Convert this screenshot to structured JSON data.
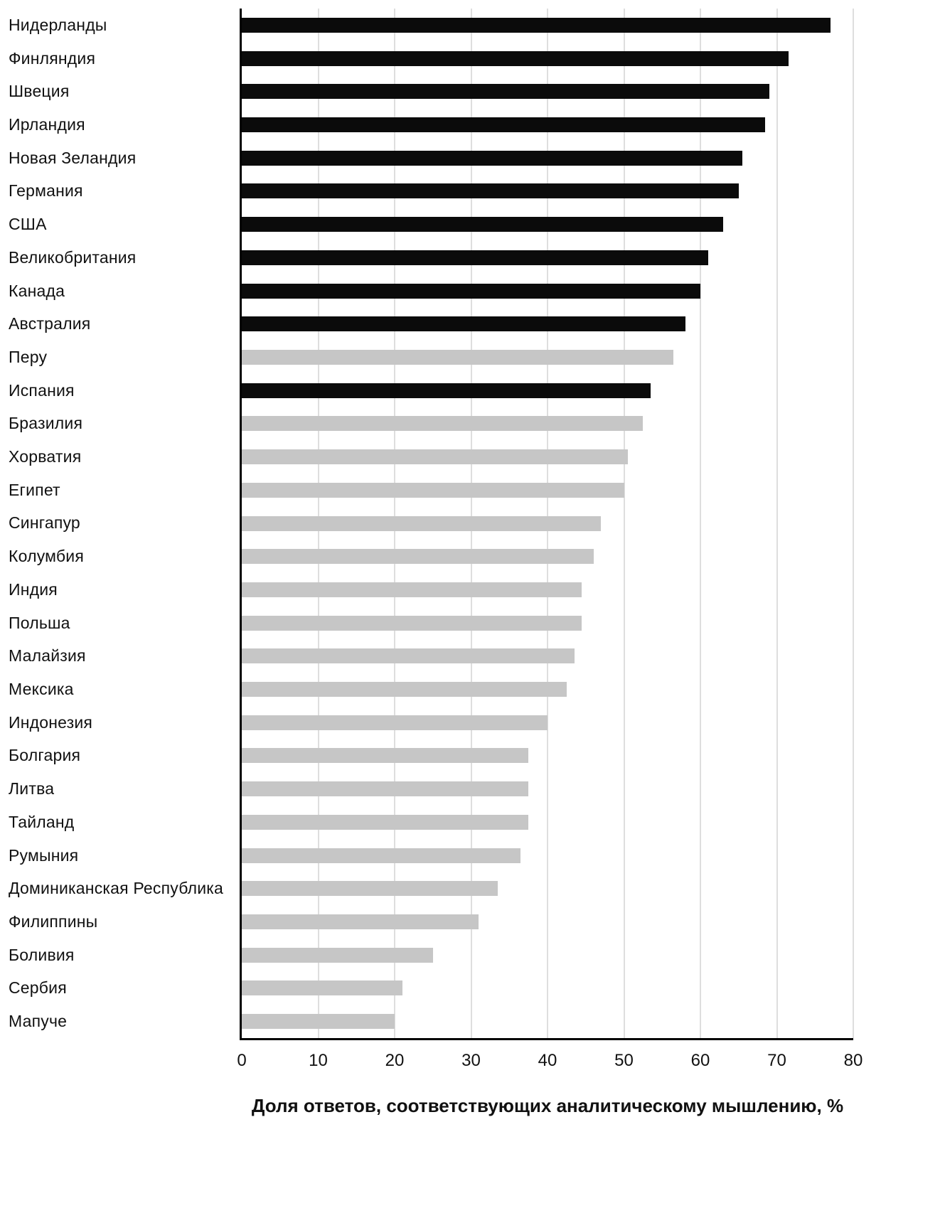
{
  "chart_data": {
    "type": "bar",
    "orientation": "horizontal",
    "title": "",
    "xlabel": "Доля ответов, соответствующих аналитическому мышлению, %",
    "ylabel": "",
    "xlim": [
      0,
      80
    ],
    "xticks": [
      0,
      10,
      20,
      30,
      40,
      50,
      60,
      70,
      80
    ],
    "grid": "vertical",
    "legend": "none",
    "categories": [
      "Нидерланды",
      "Финляндия",
      "Швеция",
      "Ирландия",
      "Новая Зеландия",
      "Германия",
      "США",
      "Великобритания",
      "Канада",
      "Австралия",
      "Перу",
      "Испания",
      "Бразилия",
      "Хорватия",
      "Египет",
      "Сингапур",
      "Колумбия",
      "Индия",
      "Польша",
      "Малайзия",
      "Мексика",
      "Индонезия",
      "Болгария",
      "Литва",
      "Тайланд",
      "Румыния",
      "Доминиканская Республика",
      "Филиппины",
      "Боливия",
      "Сербия",
      "Мапуче"
    ],
    "values": [
      77,
      71.5,
      69,
      68.5,
      65.5,
      65,
      63,
      61,
      60,
      58,
      56.5,
      53.5,
      52.5,
      50.5,
      50,
      47,
      46,
      44.5,
      44.5,
      43.5,
      42.5,
      40,
      37.5,
      37.5,
      37.5,
      36.5,
      33.5,
      31,
      25,
      21,
      20
    ],
    "groups": [
      "black",
      "black",
      "black",
      "black",
      "black",
      "black",
      "black",
      "black",
      "black",
      "black",
      "gray",
      "black",
      "gray",
      "gray",
      "gray",
      "gray",
      "gray",
      "gray",
      "gray",
      "gray",
      "gray",
      "gray",
      "gray",
      "gray",
      "gray",
      "gray",
      "gray",
      "gray",
      "gray",
      "gray",
      "gray"
    ],
    "colors": {
      "black": "#0b0b0b",
      "gray": "#c6c6c6"
    }
  }
}
